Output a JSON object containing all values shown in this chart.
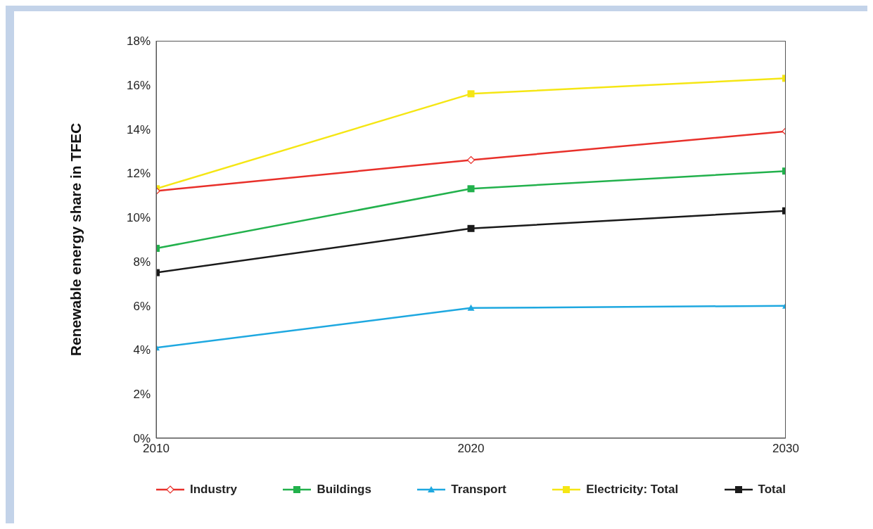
{
  "chart_data": {
    "type": "line",
    "ylabel": "Renewable energy share in TFEC",
    "x": [
      2010,
      2020,
      2030
    ],
    "xlim": [
      2010,
      2030
    ],
    "xticks": [
      2010,
      2020,
      2030
    ],
    "ylim": [
      0,
      18
    ],
    "yticks": [
      {
        "value": 0,
        "label": "0%"
      },
      {
        "value": 2,
        "label": "2%"
      },
      {
        "value": 4,
        "label": "4%"
      },
      {
        "value": 6,
        "label": "6%"
      },
      {
        "value": 8,
        "label": "8%"
      },
      {
        "value": 10,
        "label": "10%"
      },
      {
        "value": 12,
        "label": "12%"
      },
      {
        "value": 14,
        "label": "14%"
      },
      {
        "value": 16,
        "label": "16%"
      },
      {
        "value": 18,
        "label": "18%"
      }
    ],
    "grid": false,
    "legend": "bottom",
    "line_style": "solid",
    "series": [
      {
        "name": "Industry",
        "color": "#e8302a",
        "marker": "diamond",
        "values": [
          11.2,
          12.6,
          13.9
        ]
      },
      {
        "name": "Buildings",
        "color": "#22b14c",
        "marker": "square",
        "values": [
          8.6,
          11.3,
          12.1
        ]
      },
      {
        "name": "Transport",
        "color": "#1ea8e0",
        "marker": "triangle",
        "values": [
          4.1,
          5.9,
          6.0
        ]
      },
      {
        "name": "Electricity: Total",
        "color": "#f5e614",
        "marker": "square",
        "values": [
          11.3,
          15.6,
          16.3
        ]
      },
      {
        "name": "Total",
        "color": "#1a1a1a",
        "marker": "square",
        "values": [
          7.5,
          9.5,
          10.3
        ]
      }
    ]
  }
}
